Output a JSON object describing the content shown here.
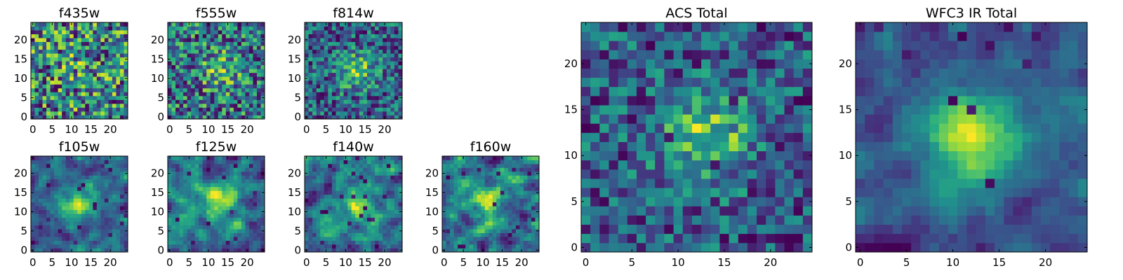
{
  "chart_data": {
    "type": "heatmap",
    "colormap": "viridis",
    "grid": false,
    "panels": [
      {
        "id": "f435w",
        "title": "f435w",
        "n": 25,
        "xticks": [
          0,
          5,
          10,
          15,
          20
        ],
        "yticks": [
          0,
          5,
          10,
          15,
          20
        ],
        "xlim": [
          -0.5,
          24.5
        ],
        "ylim": [
          -0.5,
          24.5
        ],
        "smoothness": 0,
        "peak": [
          12,
          14
        ],
        "peak_strength": 0.1,
        "seed": 11
      },
      {
        "id": "f555w",
        "title": "f555w",
        "n": 25,
        "xticks": [
          0,
          5,
          10,
          15,
          20
        ],
        "yticks": [
          0,
          5,
          10,
          15,
          20
        ],
        "xlim": [
          -0.5,
          24.5
        ],
        "ylim": [
          -0.5,
          24.5
        ],
        "smoothness": 0,
        "peak": [
          13,
          12
        ],
        "peak_strength": 0.3,
        "seed": 23
      },
      {
        "id": "f814w",
        "title": "f814w",
        "n": 25,
        "xticks": [
          0,
          5,
          10,
          15,
          20
        ],
        "yticks": [
          0,
          5,
          10,
          15,
          20
        ],
        "xlim": [
          -0.5,
          24.5
        ],
        "ylim": [
          -0.5,
          24.5
        ],
        "smoothness": 0,
        "peak": [
          13,
          12
        ],
        "peak_strength": 0.45,
        "seed": 37
      },
      {
        "id": "f105w",
        "title": "f105w",
        "n": 25,
        "xticks": [
          0,
          5,
          10,
          15,
          20
        ],
        "yticks": [
          0,
          5,
          10,
          15,
          20
        ],
        "xlim": [
          -0.5,
          24.5
        ],
        "ylim": [
          -0.5,
          24.5
        ],
        "smoothness": 1,
        "peak": [
          12,
          12
        ],
        "peak_strength": 0.55,
        "seed": 41
      },
      {
        "id": "f125w",
        "title": "f125w",
        "n": 25,
        "xticks": [
          0,
          5,
          10,
          15,
          20
        ],
        "yticks": [
          0,
          5,
          10,
          15,
          20
        ],
        "xlim": [
          -0.5,
          24.5
        ],
        "ylim": [
          -0.5,
          24.5
        ],
        "smoothness": 1,
        "peak": [
          13,
          13
        ],
        "peak_strength": 0.45,
        "seed": 53
      },
      {
        "id": "f140w",
        "title": "f140w",
        "n": 25,
        "xticks": [
          0,
          5,
          10,
          15,
          20
        ],
        "yticks": [
          0,
          5,
          10,
          15,
          20
        ],
        "xlim": [
          -0.5,
          24.5
        ],
        "ylim": [
          -0.5,
          24.5
        ],
        "smoothness": 1,
        "peak": [
          13,
          12
        ],
        "peak_strength": 0.35,
        "seed": 67
      },
      {
        "id": "f160w",
        "title": "f160w",
        "n": 25,
        "xticks": [
          0,
          5,
          10,
          15,
          20
        ],
        "yticks": [
          0,
          5,
          10,
          15,
          20
        ],
        "xlim": [
          -0.5,
          24.5
        ],
        "ylim": [
          -0.5,
          24.5
        ],
        "smoothness": 1,
        "peak": [
          12,
          13
        ],
        "peak_strength": 0.4,
        "seed": 71
      },
      {
        "id": "acs_total",
        "title": "ACS Total",
        "n": 25,
        "xticks": [
          0,
          5,
          10,
          15,
          20
        ],
        "yticks": [
          0,
          5,
          10,
          15,
          20
        ],
        "xlim": [
          -0.5,
          24.5
        ],
        "ylim": [
          -0.5,
          24.5
        ],
        "smoothness": 0,
        "peak": [
          13,
          12
        ],
        "peak_strength": 0.55,
        "seed": 83
      },
      {
        "id": "wfc3_ir_total",
        "title": "WFC3 IR Total",
        "n": 25,
        "xticks": [
          0,
          5,
          10,
          15,
          20
        ],
        "yticks": [
          0,
          5,
          10,
          15,
          20
        ],
        "xlim": [
          -0.5,
          24.5
        ],
        "ylim": [
          -0.5,
          24.5
        ],
        "smoothness": 1,
        "peak": [
          12,
          12
        ],
        "peak_strength": 0.75,
        "seed": 97
      }
    ]
  }
}
